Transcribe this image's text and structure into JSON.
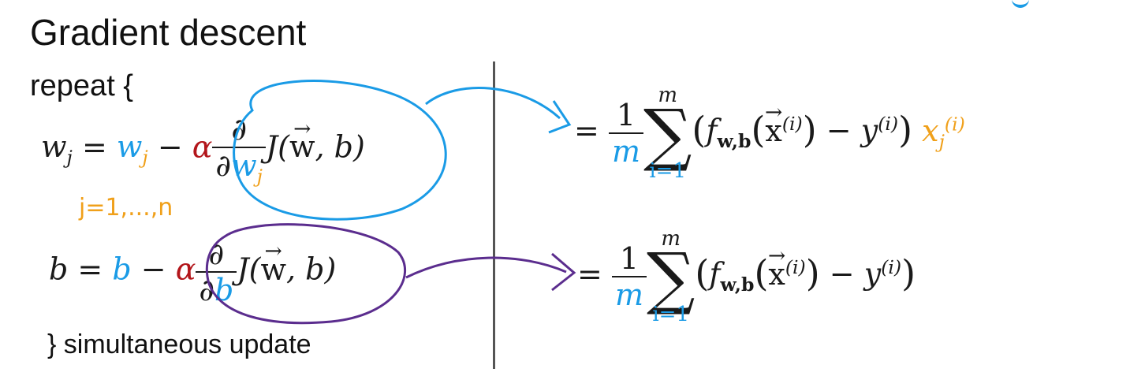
{
  "title": "Gradient descent",
  "repeat_label": "repeat {",
  "close_label": "} simultaneous update",
  "annotation_j": "j=1,...,n",
  "equations": {
    "w_update": {
      "lhs": "w",
      "lhs_sub": "j",
      "equals": "=",
      "w_term": "w",
      "w_term_sub": "j",
      "minus": "−",
      "alpha": "α",
      "partial_num": "∂",
      "partial_den": "∂",
      "partial_den_var": "w",
      "partial_den_sub": "j",
      "cost": "J(",
      "vec_w": "w",
      "cost_tail": ", b)"
    },
    "b_update": {
      "lhs": "b",
      "equals": "=",
      "b_term": "b",
      "minus": "−",
      "alpha": "α",
      "partial_num": "∂",
      "partial_den": "∂",
      "partial_den_var": "b",
      "cost": "J(",
      "vec_w": "w",
      "cost_tail": ", b)"
    },
    "w_derivative": {
      "equals": "=",
      "one": "1",
      "m": "m",
      "sum_top": "m",
      "sum_bottom": "i=1",
      "f": "f",
      "f_sub": "w,b",
      "x": "x",
      "x_sup": "(i)",
      "minus": "−",
      "y": "y",
      "y_sup": "(i)",
      "xj": "x",
      "xj_sub": "j",
      "xj_sup": "(i)"
    },
    "b_derivative": {
      "equals": "=",
      "one": "1",
      "m": "m",
      "sum_top": "m",
      "sum_bottom": "i=1",
      "f": "f",
      "f_sub": "w,b",
      "x": "x",
      "x_sup": "(i)",
      "minus": "−",
      "y": "y",
      "y_sup": "(i)"
    }
  },
  "colors": {
    "accent_blue": "#1a9be6",
    "accent_orange": "#f0a01a",
    "accent_red": "#b3161b",
    "ink_purple": "#5b2d8e",
    "divider": "#555555"
  }
}
